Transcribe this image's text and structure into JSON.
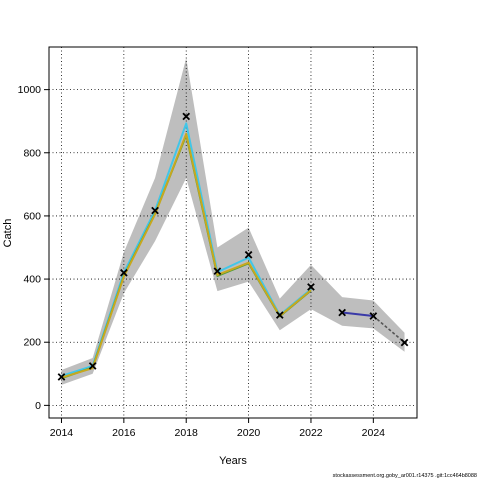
{
  "chart_data": {
    "type": "line",
    "xlabel": "Years",
    "ylabel": "Catch",
    "xlim": [
      2013.6,
      2025.4
    ],
    "ylim": [
      -40,
      1135
    ],
    "x_ticks": [
      2014,
      2016,
      2018,
      2020,
      2022,
      2024
    ],
    "y_ticks": [
      0,
      200,
      400,
      600,
      800,
      1000
    ],
    "grid": true,
    "observed": {
      "x": [
        2014,
        2015,
        2016,
        2017,
        2018,
        2019,
        2020,
        2021,
        2022,
        2023,
        2024,
        2025
      ],
      "y": [
        90,
        125,
        420,
        617,
        915,
        425,
        477,
        286,
        375,
        294,
        283,
        199
      ]
    },
    "uncertainty_band": {
      "x": [
        2014,
        2015,
        2016,
        2017,
        2018,
        2019,
        2020,
        2021,
        2022,
        2023,
        2024,
        2025
      ],
      "lower": [
        65,
        100,
        355,
        520,
        720,
        362,
        392,
        238,
        305,
        252,
        244,
        170
      ],
      "upper": [
        112,
        150,
        485,
        720,
        1100,
        500,
        563,
        338,
        445,
        343,
        332,
        230
      ]
    },
    "series": [
      {
        "color": "#41c6e8",
        "x": [
          2014,
          2015,
          2016,
          2017,
          2018,
          2019,
          2020,
          2021,
          2022
        ],
        "y": [
          93,
          125,
          420,
          617,
          893,
          422,
          468,
          286,
          368
        ]
      },
      {
        "color": "#4f9c3a",
        "x": [
          2014,
          2015,
          2016,
          2017,
          2018,
          2019,
          2020,
          2021,
          2022
        ],
        "y": [
          86,
          120,
          410,
          607,
          856,
          410,
          450,
          282,
          364
        ]
      },
      {
        "color": "#c7a81e",
        "x": [
          2014,
          2015,
          2016,
          2017,
          2018,
          2019,
          2020,
          2021,
          2022
        ],
        "y": [
          88,
          118,
          408,
          605,
          860,
          413,
          452,
          283,
          365
        ]
      },
      {
        "color": "#3a3aa8",
        "x": [
          2023,
          2024
        ],
        "y": [
          294,
          283
        ]
      }
    ],
    "projection": {
      "color": "#555555",
      "x": [
        2024,
        2025
      ],
      "y": [
        283,
        199
      ]
    }
  },
  "footer_text": "stockassessment.org.goby_ar001.r14375 .git:1cc464b8088"
}
